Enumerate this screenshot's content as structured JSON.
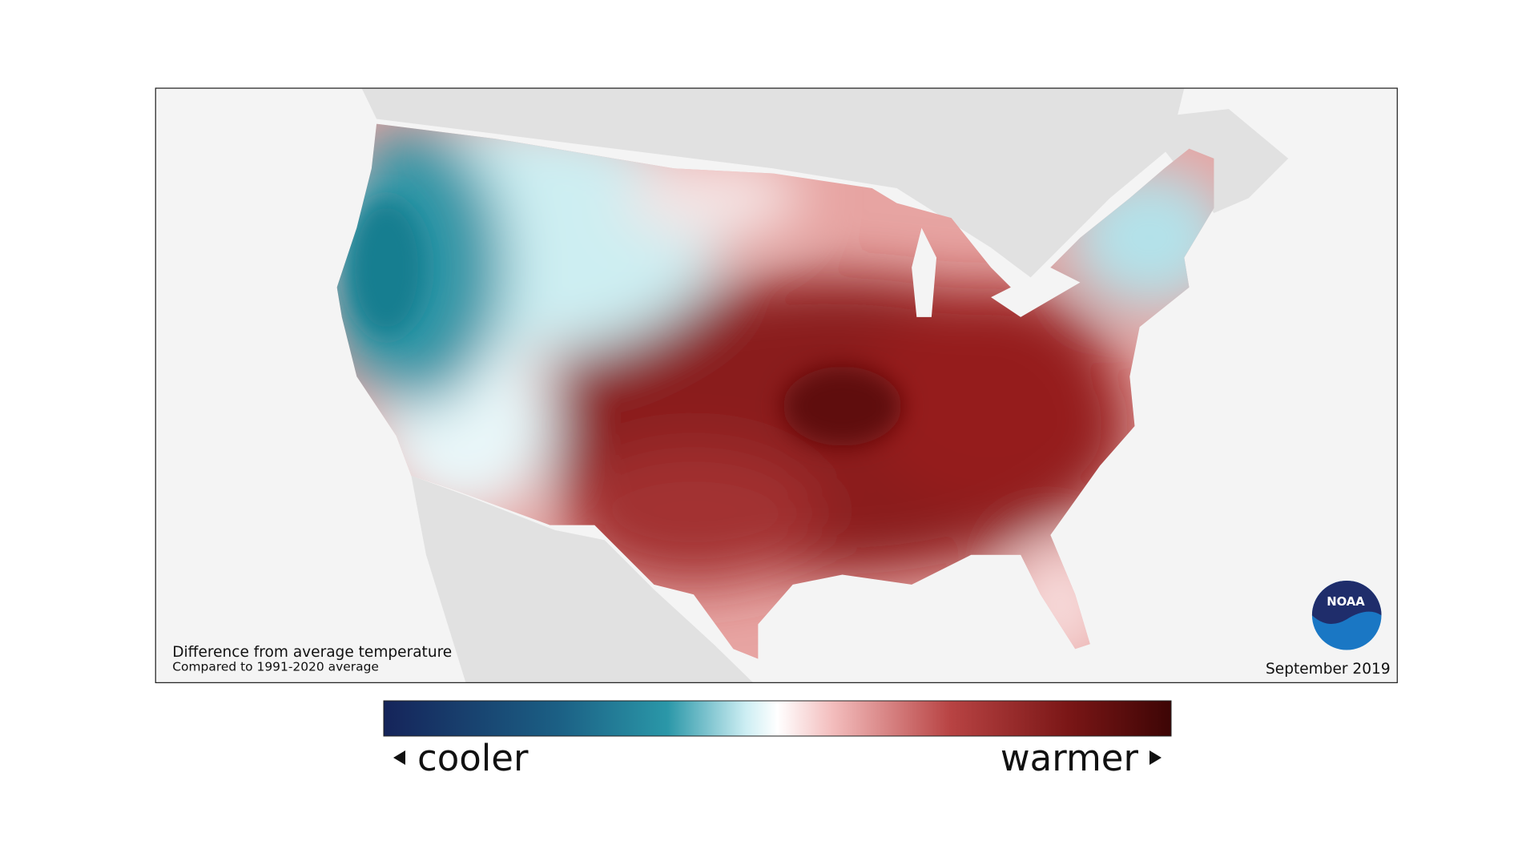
{
  "map": {
    "caption": {
      "title": "Difference from average temperature",
      "subtitle": "Compared to 1991-2020 average"
    },
    "date": "September 2019",
    "logo": "NOAA",
    "legend": {
      "low": "cooler",
      "high": "warmer"
    }
  }
}
